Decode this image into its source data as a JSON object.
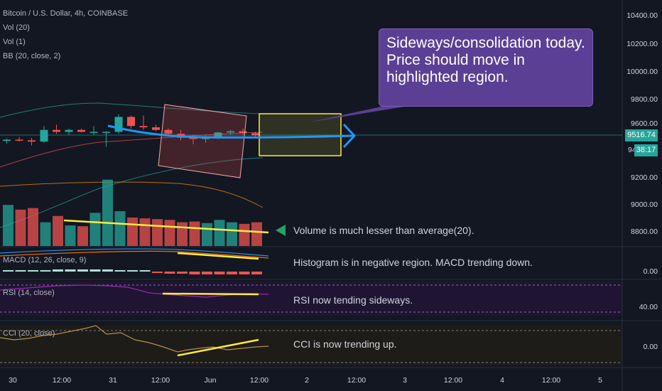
{
  "header": {
    "symbol_line": "Bitcoin / U.S. Dollar, 4h, COINBASE",
    "indicators": [
      "Vol (20)",
      "Vol (1)",
      "BB (20, close, 2)"
    ]
  },
  "callout": {
    "lines": [
      "Sideways/consolidation today.",
      "Price should move in",
      "highlighted region."
    ]
  },
  "price_axis": {
    "labels": [
      "10400.00",
      "10200.00",
      "10000.00",
      "9800.00",
      "9600.00",
      "9200.00",
      "9000.00",
      "8800.00"
    ],
    "current_price": "9516.74",
    "countdown": "38:17",
    "partial_label": "94"
  },
  "panes": {
    "macd": {
      "label": "MACD (12, 26, close, 9)",
      "axis": "0.00"
    },
    "rsi": {
      "label": "RSI (14, close)",
      "axis": "40.00"
    },
    "cci": {
      "label": "CCI (20, close)",
      "axis": "0.00"
    }
  },
  "notes": {
    "volume": "Volume is much lesser than average(20).",
    "macd": "Histogram is in negative region. MACD trending down.",
    "rsi": "RSI now tending sideways.",
    "cci": "CCI is now trending up."
  },
  "time_axis": [
    "30",
    "12:00",
    "31",
    "12:00",
    "Jun",
    "12:00",
    "2",
    "12:00",
    "3",
    "12:00",
    "4",
    "12:00",
    "5"
  ],
  "colors": {
    "background": "#131722",
    "up": "#26a69a",
    "down": "#ef5350",
    "callout": "#5b3f95",
    "highlight_line": "#ffeb3b",
    "projection_arrow": "#2196f3"
  },
  "chart_data": {
    "type": "candlestick",
    "price_ylim": [
      8700,
      10450
    ],
    "candles": [
      {
        "o": 9475,
        "h": 9495,
        "l": 9455,
        "c": 9485
      },
      {
        "o": 9485,
        "h": 9505,
        "l": 9470,
        "c": 9480
      },
      {
        "o": 9480,
        "h": 9500,
        "l": 9440,
        "c": 9470
      },
      {
        "o": 9470,
        "h": 9590,
        "l": 9460,
        "c": 9560
      },
      {
        "o": 9560,
        "h": 9600,
        "l": 9530,
        "c": 9545
      },
      {
        "o": 9545,
        "h": 9570,
        "l": 9520,
        "c": 9560
      },
      {
        "o": 9560,
        "h": 9570,
        "l": 9540,
        "c": 9545
      },
      {
        "o": 9545,
        "h": 9590,
        "l": 9520,
        "c": 9545
      },
      {
        "o": 9545,
        "h": 9550,
        "l": 9430,
        "c": 9545
      },
      {
        "o": 9545,
        "h": 9680,
        "l": 9530,
        "c": 9660
      },
      {
        "o": 9660,
        "h": 9670,
        "l": 9570,
        "c": 9590
      },
      {
        "o": 9590,
        "h": 9670,
        "l": 9560,
        "c": 9580
      },
      {
        "o": 9580,
        "h": 9600,
        "l": 9550,
        "c": 9560
      },
      {
        "o": 9560,
        "h": 9570,
        "l": 9510,
        "c": 9530
      },
      {
        "o": 9530,
        "h": 9560,
        "l": 9480,
        "c": 9500
      },
      {
        "o": 9500,
        "h": 9520,
        "l": 9450,
        "c": 9490
      },
      {
        "o": 9490,
        "h": 9520,
        "l": 9460,
        "c": 9505
      },
      {
        "o": 9505,
        "h": 9545,
        "l": 9490,
        "c": 9540
      },
      {
        "o": 9540,
        "h": 9560,
        "l": 9520,
        "c": 9550
      },
      {
        "o": 9550,
        "h": 9570,
        "l": 9525,
        "c": 9535
      },
      {
        "o": 9535,
        "h": 9545,
        "l": 9505,
        "c": 9517
      }
    ],
    "volume": [
      520,
      460,
      480,
      300,
      380,
      260,
      250,
      420,
      840,
      440,
      360,
      350,
      340,
      330,
      300,
      310,
      290,
      330,
      300,
      280,
      300
    ],
    "annotations": [
      "Volume is much lesser than average(20).",
      "Histogram is in negative region. MACD trending down.",
      "RSI now tending sideways.",
      "CCI is now trending up."
    ]
  }
}
